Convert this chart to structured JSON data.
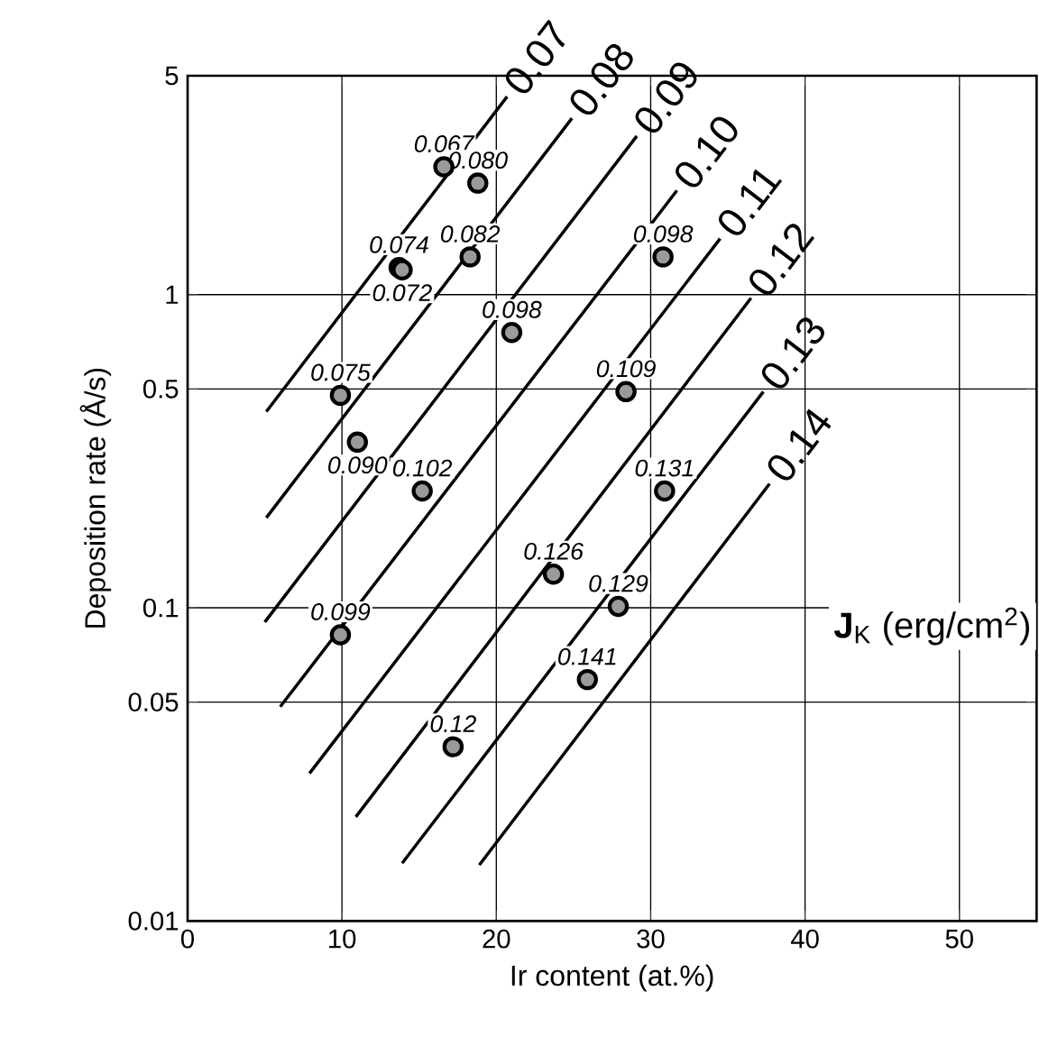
{
  "chart_data": {
    "type": "scatter",
    "xlabel": "Ir content (at.%)",
    "ylabel": "Deposition rate (Å/s)",
    "log": "y",
    "grid": true,
    "xlim": [
      0,
      55
    ],
    "ylim": [
      0.01,
      5
    ],
    "xticks": [
      0,
      10,
      20,
      30,
      40,
      50
    ],
    "yticks": [
      0.01,
      0.05,
      0.1,
      0.5,
      1,
      5
    ],
    "annotations": [
      "**J**$_{K}$ (erg/cm$^{2}$)",
      {
        "text": "0.067",
        "x": 16.6,
        "y": 2.56
      },
      {
        "text": "0.080",
        "x": 18.8,
        "y": 2.27
      },
      {
        "text": "0.074",
        "x": 13.7,
        "y": 1.22
      },
      {
        "text": "0.072",
        "x": 13.9,
        "y": 1.2
      },
      {
        "text": "0.082",
        "x": 18.3,
        "y": 1.32
      },
      {
        "text": "0.098",
        "x": 30.8,
        "y": 1.32
      },
      {
        "text": "0.098",
        "x": 21.0,
        "y": 0.757
      },
      {
        "text": "0.075",
        "x": 9.9,
        "y": 0.477
      },
      {
        "text": "0.090",
        "x": 11.0,
        "y": 0.338
      },
      {
        "text": "0.102",
        "x": 15.2,
        "y": 0.236
      },
      {
        "text": "0.109",
        "x": 28.4,
        "y": 0.49
      },
      {
        "text": "0.131",
        "x": 30.9,
        "y": 0.236
      },
      {
        "text": "0.126",
        "x": 23.7,
        "y": 0.128
      },
      {
        "text": "0.129",
        "x": 27.9,
        "y": 0.101
      },
      {
        "text": "0.099",
        "x": 9.9,
        "y": 0.082
      },
      {
        "text": "0.141",
        "x": 25.9,
        "y": 0.059
      },
      {
        "text": "0.12",
        "x": 17.2,
        "y": 0.036
      }
    ],
    "series": [
      {
        "marker": "circle",
        "color": "#9a9a9a",
        "x": [
          16.6,
          18.8,
          13.7,
          13.9,
          18.3,
          30.8,
          21.0,
          9.9,
          11.0,
          15.2,
          28.4,
          30.9,
          23.7,
          27.9,
          9.9,
          25.9,
          17.2
        ],
        "values": [
          2.56,
          2.27,
          1.22,
          1.2,
          1.32,
          1.32,
          0.757,
          0.477,
          0.338,
          0.236,
          0.49,
          0.236,
          0.128,
          0.101,
          0.082,
          0.059,
          0.036
        ]
      },
      {
        "type": "line",
        "name": "0.07",
        "color": "#000000",
        "x": [
          5.1,
          20.7
        ],
        "values": [
          0.423,
          4.29
        ]
      },
      {
        "type": "line",
        "name": "0.08",
        "color": "#000000",
        "x": [
          5.1,
          24.9
        ],
        "values": [
          0.194,
          3.66
        ]
      },
      {
        "type": "line",
        "name": "0.09",
        "color": "#000000",
        "x": [
          5.0,
          29.1
        ],
        "values": [
          0.09,
          3.21
        ]
      },
      {
        "type": "line",
        "name": "0.10",
        "color": "#000000",
        "x": [
          6.0,
          31.7
        ],
        "values": [
          0.0483,
          2.15
        ]
      },
      {
        "type": "line",
        "name": "0.11",
        "color": "#000000",
        "x": [
          7.9,
          34.5
        ],
        "values": [
          0.0296,
          1.51
        ]
      },
      {
        "type": "line",
        "name": "0.12",
        "color": "#000000",
        "x": [
          10.9,
          36.5
        ],
        "values": [
          0.0215,
          0.975
        ]
      },
      {
        "type": "line",
        "name": "0.13",
        "color": "#000000",
        "x": [
          13.9,
          37.3
        ],
        "values": [
          0.0153,
          0.49
        ]
      },
      {
        "type": "line",
        "name": "0.14",
        "color": "#000000",
        "x": [
          18.9,
          37.7
        ],
        "values": [
          0.0151,
          0.249
        ]
      }
    ]
  }
}
